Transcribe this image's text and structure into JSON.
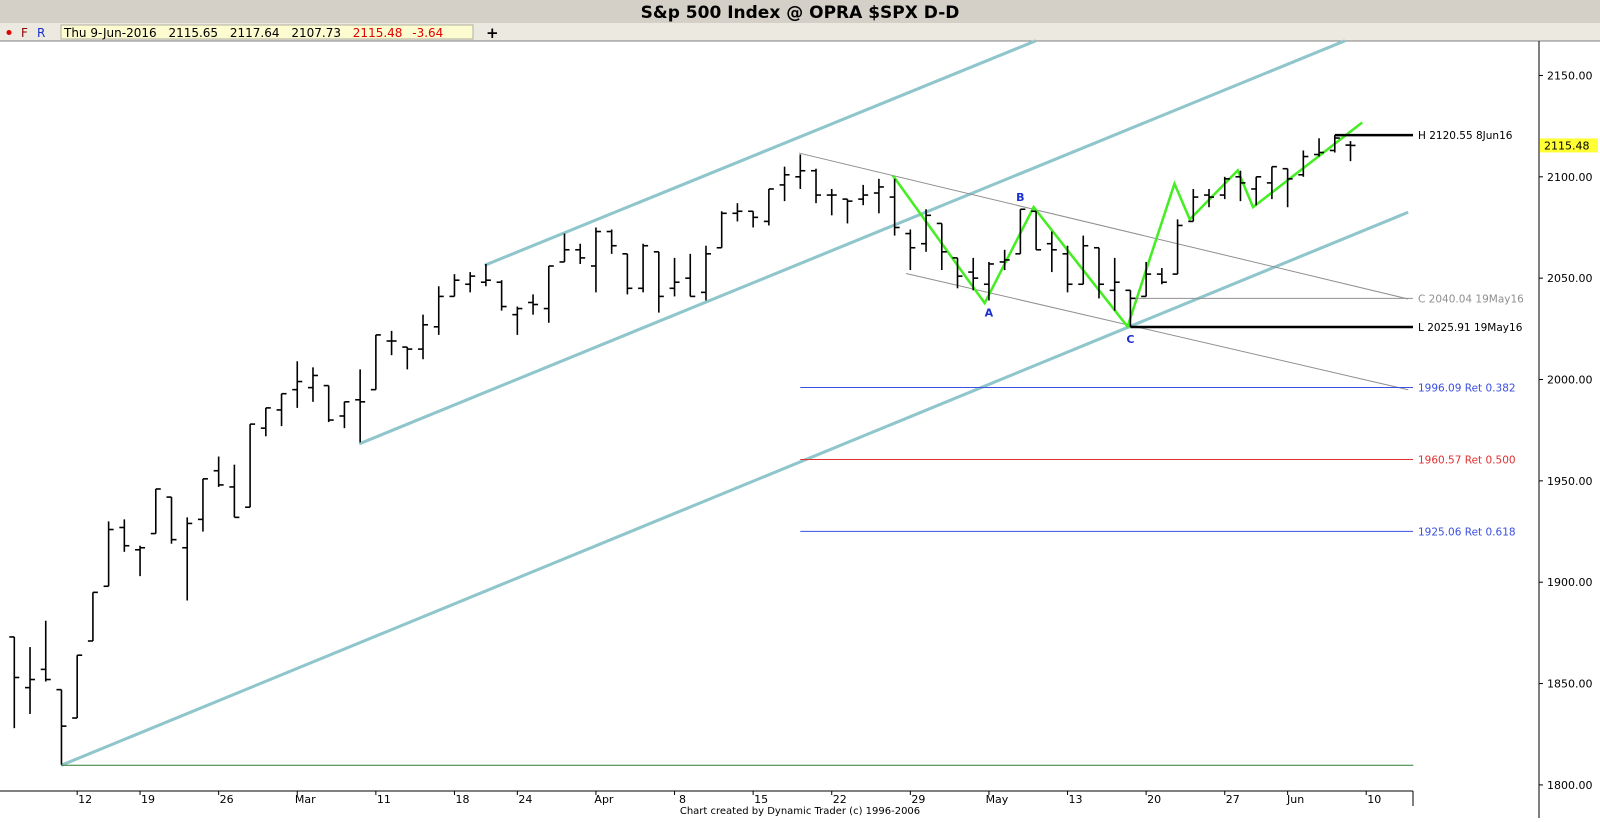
{
  "header": {
    "title": "S&p 500 Index @ OPRA $SPX   D-D",
    "menu": [
      "F",
      "R"
    ],
    "date": "Thu 9-Jun-2016",
    "change": -3.64,
    "add_button": "+"
  },
  "footer": "Chart created by Dynamic Trader  (c) 1996-2006",
  "chart_data": {
    "type": "ohlc",
    "color": "#000000",
    "grid": false,
    "categories": [
      null,
      null,
      null,
      null,
      "12",
      null,
      null,
      null,
      "19",
      null,
      null,
      null,
      null,
      "26",
      null,
      null,
      null,
      null,
      "Mar",
      null,
      null,
      null,
      null,
      "11",
      null,
      null,
      null,
      null,
      "18",
      null,
      null,
      null,
      "24",
      null,
      null,
      null,
      null,
      "Apr",
      null,
      null,
      null,
      null,
      "8",
      null,
      null,
      null,
      null,
      "15",
      null,
      null,
      null,
      null,
      "22",
      null,
      null,
      null,
      null,
      "29",
      null,
      null,
      null,
      null,
      "May",
      null,
      null,
      null,
      null,
      "13",
      null,
      null,
      null,
      null,
      "20",
      null,
      null,
      null,
      null,
      "27",
      null,
      null,
      null,
      "Jun",
      null,
      null,
      null,
      null,
      "10"
    ],
    "open": [
      1873,
      1848,
      1857,
      1847,
      1833,
      1871,
      1898,
      1927,
      1916,
      1924,
      1942,
      1917,
      1931,
      1955,
      1947,
      1937,
      1976,
      1985,
      1995,
      1996,
      1997,
      1982,
      1990,
      1995,
      2019,
      2016,
      2015,
      2026,
      2041,
      2047,
      2048,
      2048,
      2032,
      2038,
      2035,
      2058,
      2064,
      2056,
      2073,
      2062,
      2045,
      2063,
      2045,
      2050,
      2043,
      2065,
      2082,
      2083,
      2078,
      2096,
      2100,
      2103,
      2091,
      2089,
      2089,
      2092,
      2090,
      2072,
      2067,
      2077,
      2060,
      2053,
      2047,
      2058,
      2062,
      2083,
      2067,
      2062,
      2047,
      2065,
      2044,
      2044,
      2041,
      2052,
      2052,
      2078,
      2091,
      2091,
      2100,
      2094,
      2097,
      2104,
      2101,
      2111,
      2113,
      2115.65,
      null
    ],
    "high": [
      1873,
      1868,
      1881,
      1847,
      1864,
      1895,
      1930,
      1931,
      1918,
      1946,
      1942,
      1932,
      1951,
      1962,
      1958,
      1978,
      1986,
      1993,
      2009,
      2006,
      1997,
      1989,
      2005,
      2022,
      2024,
      2016,
      2032,
      2046,
      2052,
      2053,
      2057,
      2049,
      2036,
      2042,
      2056,
      2072,
      2067,
      2075,
      2074,
      2062,
      2067,
      2063,
      2060,
      2062,
      2066,
      2083,
      2087,
      2083,
      2094,
      2105,
      2111,
      2104,
      2094,
      2089,
      2096,
      2099,
      2099,
      2074,
      2084,
      2077,
      2060,
      2060,
      2058,
      2064,
      2084,
      2083,
      2073,
      2066,
      2071,
      2065,
      2060,
      2044,
      2058,
      2055,
      2079,
      2094,
      2094,
      2100,
      2103,
      2100,
      2105,
      2104,
      2113,
      2119,
      2120.55,
      2117.64,
      null
    ],
    "low": [
      1828,
      1835,
      1851,
      1810,
      1833,
      1871,
      1898,
      1915,
      1903,
      1924,
      1919,
      1891,
      1925,
      1947,
      1932,
      1937,
      1972,
      1977,
      1986,
      1989,
      1979,
      1976,
      1969,
      1995,
      2012,
      2005,
      2010,
      2022,
      2041,
      2043,
      2046,
      2034,
      2022,
      2032,
      2028,
      2058,
      2057,
      2043,
      2062,
      2042,
      2043,
      2033,
      2041,
      2041,
      2039,
      2065,
      2078,
      2075,
      2076,
      2088,
      2094,
      2087,
      2081,
      2077,
      2086,
      2082,
      2071,
      2054,
      2063,
      2054,
      2045,
      2044,
      2039,
      2054,
      2062,
      2064,
      2053,
      2043,
      2047,
      2040,
      2034,
      2025.91,
      2041,
      2047,
      2052,
      2078,
      2085,
      2089,
      2088,
      2086,
      2089,
      2085,
      2100,
      2110,
      2112,
      2107.73,
      null
    ],
    "close": [
      1853,
      1852,
      1852,
      1829,
      1864,
      1895,
      1926,
      1918,
      1917,
      1946,
      1921,
      1929,
      1951,
      1948,
      1932,
      1978,
      1986,
      1993,
      1999,
      2002,
      1980,
      1989,
      1989,
      2022,
      2019,
      2015,
      2027,
      2041,
      2049,
      2051,
      2049,
      2036,
      2035,
      2037,
      2056,
      2064,
      2060,
      2073,
      2066,
      2045,
      2066,
      2041,
      2048,
      2041,
      2062,
      2082,
      2083,
      2080,
      2094,
      2101,
      2103,
      2091,
      2091,
      2088,
      2091,
      2095,
      2075,
      2065,
      2081,
      2063,
      2051,
      2050,
      2057,
      2059,
      2084,
      2064,
      2064,
      2047,
      2066,
      2047,
      2048,
      2040.04,
      2052,
      2048,
      2076,
      2090,
      2090,
      2099,
      2097,
      2100,
      2105,
      2099,
      2110,
      2112,
      2119.12,
      2115.48,
      null
    ],
    "ylim": [
      1797,
      2167
    ],
    "yticks": [
      {
        "value": 1800,
        "label": "1800.00"
      },
      {
        "value": 1850,
        "label": "1850.00"
      },
      {
        "value": 1900,
        "label": "1900.00"
      },
      {
        "value": 1950,
        "label": "1950.00"
      },
      {
        "value": 2000,
        "label": "2000.00"
      },
      {
        "value": 2050,
        "label": "2050.00"
      },
      {
        "value": 2100,
        "label": "2100.00"
      },
      {
        "value": 2150,
        "label": "2150.00"
      }
    ],
    "levels": [
      {
        "value": 2120.55,
        "label": "H 2120.55 8Jun16",
        "color": "#000000"
      },
      {
        "value": 2040.04,
        "label": "C 2040.04 19May16",
        "color": "#909090"
      },
      {
        "value": 2025.91,
        "label": "L 2025.91 19May16",
        "color": "#000000"
      },
      {
        "value": 1996.09,
        "label": "1996.09 Ret 0.382",
        "color": "#3a4fe0"
      },
      {
        "value": 1960.57,
        "label": "1960.57 Ret 0.500",
        "color": "#e03030"
      },
      {
        "value": 1925.06,
        "label": "1925.06 Ret 0.618",
        "color": "#3a4fe0"
      }
    ],
    "pivot_labels": [
      "A",
      "B",
      "C"
    ],
    "pivot_color": "#1a2fd0"
  }
}
